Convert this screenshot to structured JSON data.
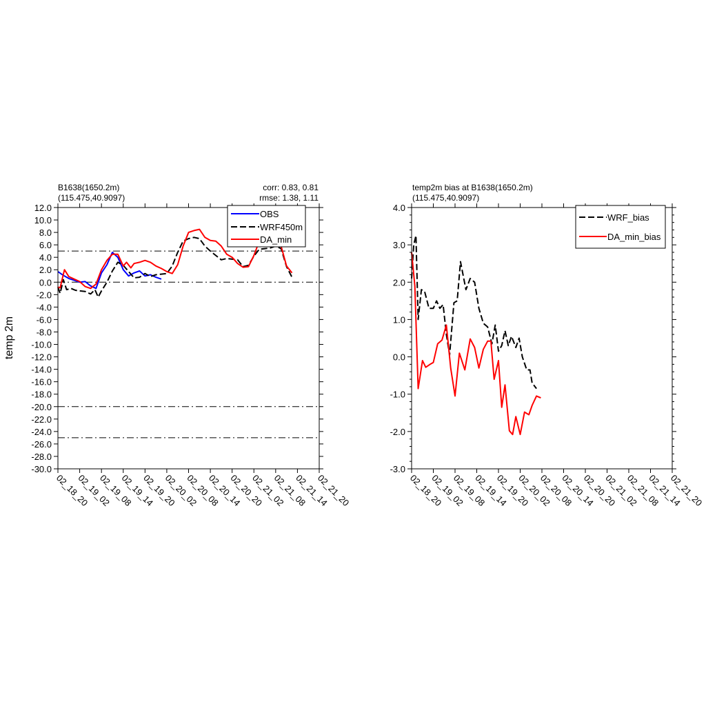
{
  "chart_data": [
    {
      "type": "line",
      "header_left": [
        "B1638(1650.2m)",
        "(115.475,40.9097)"
      ],
      "header_right": [
        "corr:  0.83, 0.81",
        "rmse: 1.38, 1.11"
      ],
      "ylabel": "temp 2m",
      "ylim": [
        -30,
        12
      ],
      "yticks": [
        "12.0",
        "10.0",
        "8.0",
        "6.0",
        "4.0",
        "2.0",
        "0.0",
        "-2.0",
        "-4.0",
        "-6.0",
        "-8.0",
        "-10.0",
        "-12.0",
        "-14.0",
        "-16.0",
        "-18.0",
        "-20.0",
        "-22.0",
        "-24.0",
        "-26.0",
        "-28.0",
        "-30.0"
      ],
      "xticks": [
        "02_18_20",
        "02_19_02",
        "02_19_08",
        "02_19_14",
        "02_19_20",
        "02_20_02",
        "02_20_08",
        "02_20_14",
        "02_20_20",
        "02_21_02",
        "02_21_08",
        "02_21_14",
        "02_21_20"
      ],
      "ref_lines": [
        5,
        0,
        -20,
        -25
      ],
      "legend": [
        "OBS",
        "WRF450m",
        "DA_min"
      ],
      "series": [
        {
          "name": "OBS",
          "color": "#0000ff",
          "style": "solid",
          "x": [
            0,
            0.25,
            0.5,
            0.75,
            1.0,
            1.25,
            1.5,
            1.75,
            2.0,
            2.25,
            2.5,
            2.75,
            3.0,
            3.25,
            3.5,
            3.75,
            4.0,
            4.25,
            4.5,
            4.75,
            5.0,
            5.25,
            5.5,
            5.75
          ],
          "y": [
            1.7,
            1.1,
            0.6,
            0.3,
            0.0,
            0.1,
            -0.6,
            -1.0,
            1.5,
            2.8,
            4.8,
            4.0,
            2.0,
            1.0,
            1.5,
            1.8,
            1.0,
            1.2,
            0.8,
            0.5,
            null,
            null,
            null,
            null
          ]
        },
        {
          "name": "WRF450m",
          "color": "#000000",
          "style": "dash",
          "x": [
            0,
            0.1,
            0.25,
            0.4,
            0.6,
            0.8,
            1.0,
            1.25,
            1.5,
            1.7,
            1.85,
            2.0,
            2.25,
            2.5,
            2.75,
            3.0,
            3.25,
            3.5,
            3.75,
            4.0,
            4.25,
            4.5,
            4.75,
            5.0,
            5.25,
            5.5,
            5.75,
            6.0,
            6.25,
            6.5,
            6.75,
            7.0,
            7.25,
            7.5,
            7.75,
            8.0,
            8.25,
            8.5,
            8.75,
            9.0,
            9.25,
            9.5,
            9.75,
            10.0,
            10.25,
            10.5,
            10.75,
            11.0,
            11.25,
            11.5,
            11.75,
            12.0
          ],
          "y": [
            -0.8,
            -1.8,
            0.4,
            -1.2,
            -1.0,
            -1.3,
            -1.4,
            -1.5,
            -1.9,
            -1.2,
            -2.4,
            -1.4,
            0.0,
            1.8,
            3.2,
            2.7,
            1.7,
            0.7,
            0.8,
            1.4,
            0.9,
            1.2,
            1.3,
            1.4,
            2.6,
            4.8,
            6.6,
            7.0,
            7.2,
            7.0,
            5.8,
            5.0,
            4.3,
            3.6,
            3.8,
            3.7,
            3.6,
            2.5,
            2.7,
            4.2,
            5.3,
            5.4,
            5.5,
            5.8,
            5.4,
            2.5,
            0.8,
            null,
            null,
            null,
            null,
            null
          ]
        },
        {
          "name": "DA_min",
          "color": "#ff0000",
          "style": "solid",
          "x": [
            0,
            0.1,
            0.3,
            0.5,
            0.75,
            1.0,
            1.25,
            1.5,
            1.75,
            2.0,
            2.25,
            2.5,
            2.75,
            3.0,
            3.15,
            3.35,
            3.5,
            3.75,
            4.0,
            4.25,
            4.5,
            4.75,
            5.0,
            5.25,
            5.5,
            5.75,
            6.0,
            6.25,
            6.5,
            6.75,
            7.0,
            7.25,
            7.5,
            7.75,
            8.0,
            8.25,
            8.5,
            8.75,
            9.0,
            9.25,
            9.5,
            9.75,
            10.0,
            10.25,
            10.5,
            10.75,
            11.0,
            11.25,
            11.5,
            11.75,
            12.0
          ],
          "y": [
            -0.8,
            -0.9,
            2.0,
            0.9,
            0.5,
            0.1,
            -0.7,
            -1.0,
            -0.3,
            2.0,
            3.5,
            4.5,
            4.5,
            2.6,
            3.2,
            2.3,
            3.0,
            3.2,
            3.5,
            3.2,
            2.6,
            2.2,
            1.7,
            1.4,
            2.8,
            5.8,
            8.0,
            8.3,
            8.5,
            7.2,
            6.7,
            6.6,
            5.8,
            4.5,
            4.0,
            3.0,
            2.4,
            2.5,
            4.3,
            6.6,
            7.1,
            6.4,
            6.9,
            5.8,
            2.6,
            1.5,
            null,
            null,
            null,
            null,
            null
          ]
        }
      ]
    },
    {
      "type": "line",
      "header_left": [
        "temp2m bias at B1638(1650.2m)",
        "(115.475,40.9097)"
      ],
      "ylim": [
        -3,
        4
      ],
      "yticks": [
        "4.0",
        "3.0",
        "2.0",
        "1.0",
        "0.0",
        "-1.0",
        "-2.0",
        "-3.0"
      ],
      "xticks": [
        "02_18_20",
        "02_19_02",
        "02_19_08",
        "02_19_14",
        "02_19_20",
        "02_20_02",
        "02_20_08",
        "02_20_14",
        "02_20_20",
        "02_21_02",
        "02_21_08",
        "02_21_14",
        "02_21_20"
      ],
      "legend": [
        "WRF_bias",
        "DA_min_bias"
      ],
      "series": [
        {
          "name": "WRF_bias",
          "color": "#000000",
          "style": "dash",
          "x": [
            0,
            0.1,
            0.2,
            0.3,
            0.45,
            0.6,
            0.8,
            1.0,
            1.15,
            1.3,
            1.45,
            1.6,
            1.75,
            1.95,
            2.1,
            2.25,
            2.5,
            2.7,
            2.9,
            3.1,
            3.3,
            3.5,
            3.7,
            3.85,
            4.0,
            4.15,
            4.3,
            4.45,
            4.6,
            4.8,
            4.95,
            5.1,
            5.3,
            5.45,
            5.55,
            5.75,
            5.95
          ],
          "y": [
            2.1,
            3.0,
            3.25,
            1.0,
            1.8,
            1.75,
            1.3,
            1.3,
            1.5,
            1.3,
            1.4,
            0.6,
            0.05,
            1.45,
            1.5,
            2.55,
            1.8,
            2.1,
            2.0,
            1.3,
            0.9,
            0.8,
            0.35,
            0.85,
            0.15,
            0.3,
            0.7,
            0.3,
            0.55,
            0.25,
            0.5,
            0.0,
            -0.35,
            -0.35,
            -0.7,
            -0.85,
            null
          ]
        },
        {
          "name": "DA_min_bias",
          "color": "#ff0000",
          "style": "solid",
          "x": [
            0,
            0.15,
            0.3,
            0.5,
            0.65,
            0.85,
            1.0,
            1.2,
            1.4,
            1.6,
            1.8,
            2.0,
            2.2,
            2.45,
            2.7,
            2.9,
            3.1,
            3.3,
            3.5,
            3.65,
            3.8,
            4.0,
            4.15,
            4.3,
            4.5,
            4.65,
            4.8,
            5.0,
            5.2,
            5.4,
            5.55,
            5.75,
            5.95
          ],
          "y": [
            2.8,
            1.9,
            -0.85,
            -0.1,
            -0.28,
            -0.2,
            -0.15,
            0.35,
            0.45,
            0.85,
            -0.3,
            -1.05,
            0.1,
            -0.35,
            0.48,
            0.25,
            -0.3,
            0.2,
            0.42,
            0.42,
            -0.6,
            -0.1,
            -1.35,
            -0.75,
            -1.98,
            -2.08,
            -1.6,
            -2.08,
            -1.48,
            -1.55,
            -1.3,
            -1.05,
            -1.1
          ]
        }
      ]
    }
  ]
}
